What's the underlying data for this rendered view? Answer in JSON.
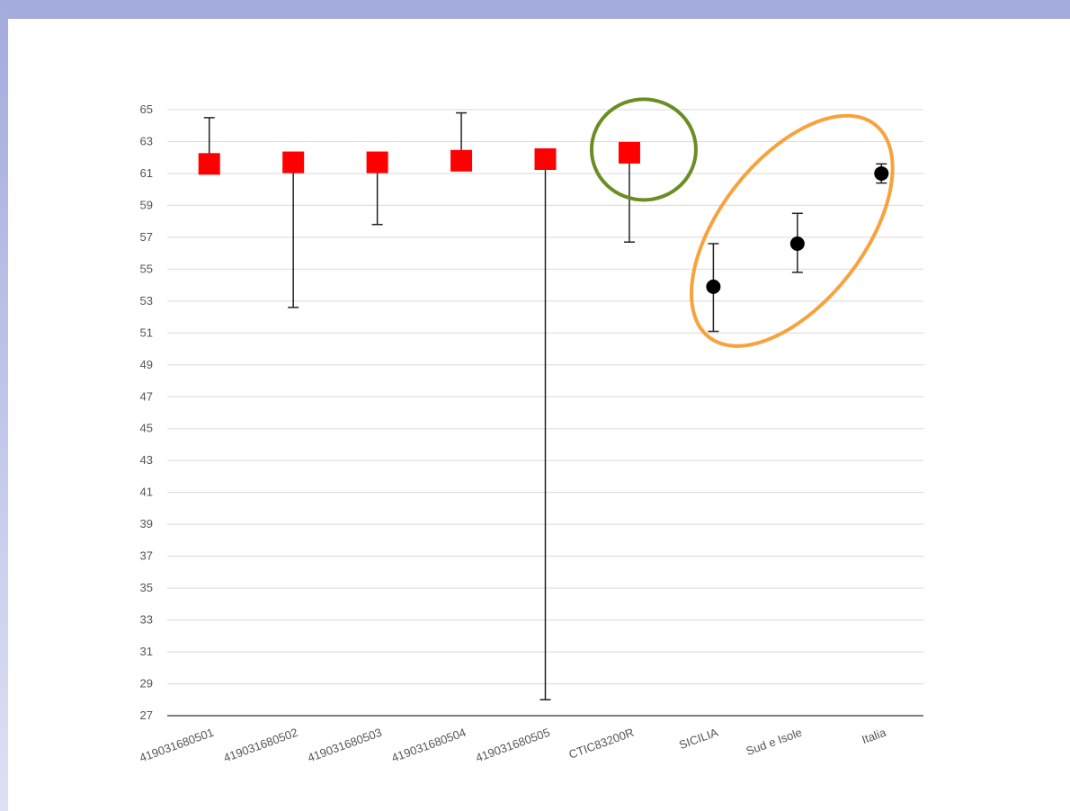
{
  "chart_data": {
    "type": "scatter",
    "title": "",
    "xlabel": "",
    "ylabel": "",
    "ylim": [
      27,
      65
    ],
    "yticks": [
      27,
      29,
      31,
      33,
      35,
      37,
      39,
      41,
      43,
      45,
      47,
      49,
      51,
      53,
      55,
      57,
      59,
      61,
      63,
      65
    ],
    "grid": true,
    "categories": [
      "419031680501",
      "419031680502",
      "419031680503",
      "419031680504",
      "419031680505",
      "CTIC83200R",
      "SICILIA",
      "Sud e Isole",
      "Italia"
    ],
    "series": [
      {
        "marker": "square",
        "color": "#ff0000",
        "points": [
          {
            "category": "419031680501",
            "value": 61.6,
            "err_low": 61.6,
            "err_high": 64.5
          },
          {
            "category": "419031680502",
            "value": 61.7,
            "err_low": 52.6,
            "err_high": 61.7
          },
          {
            "category": "419031680503",
            "value": 61.7,
            "err_low": 57.8,
            "err_high": 61.7
          },
          {
            "category": "419031680504",
            "value": 61.8,
            "err_low": 61.8,
            "err_high": 64.8
          },
          {
            "category": "419031680505",
            "value": 61.9,
            "err_low": 28.0,
            "err_high": 61.9
          },
          {
            "category": "CTIC83200R",
            "value": 62.3,
            "err_low": 56.7,
            "err_high": 62.3
          }
        ]
      },
      {
        "marker": "circle",
        "color": "#000000",
        "points": [
          {
            "category": "SICILIA",
            "value": 53.9,
            "err_low": 51.1,
            "err_high": 56.6
          },
          {
            "category": "Sud e Isole",
            "value": 56.6,
            "err_low": 54.8,
            "err_high": 58.5
          },
          {
            "category": "Italia",
            "value": 61.0,
            "err_low": 60.4,
            "err_high": 61.6
          }
        ]
      }
    ],
    "annotations": [
      {
        "shape": "circle",
        "color": "#6b8e23",
        "around": [
          "CTIC83200R"
        ]
      },
      {
        "shape": "ellipse",
        "color": "#f7a23b",
        "around": [
          "SICILIA",
          "Sud e Isole",
          "Italia"
        ]
      }
    ]
  },
  "frame": {
    "bar_color_top": "#a4abdd",
    "bar_color_left": "#b7bde6"
  }
}
